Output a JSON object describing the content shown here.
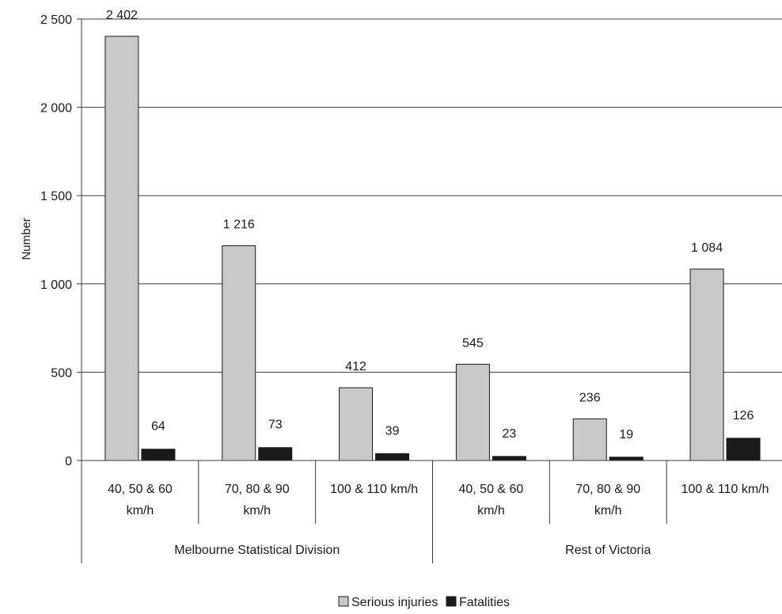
{
  "chart_data": {
    "type": "bar",
    "title": "",
    "xlabel": "",
    "ylabel": "Number",
    "ylim": [
      0,
      2500
    ],
    "yticks": [
      0,
      500,
      1000,
      1500,
      2000,
      2500
    ],
    "ytick_labels": [
      "0",
      "500",
      "1 000",
      "1 500",
      "2 000",
      "2 500"
    ],
    "grid": "horizontal",
    "legend_position": "bottom-center",
    "categories": [
      {
        "lines": [
          "40, 50 & 60",
          "km/h"
        ]
      },
      {
        "lines": [
          "70, 80 & 90",
          "km/h"
        ]
      },
      {
        "lines": [
          "100 & 110 km/h"
        ]
      },
      {
        "lines": [
          "40, 50 & 60",
          "km/h"
        ]
      },
      {
        "lines": [
          "70, 80 & 90",
          "km/h"
        ]
      },
      {
        "lines": [
          "100 & 110 km/h"
        ]
      }
    ],
    "groups": [
      {
        "label": "Melbourne Statistical Division",
        "span": [
          0,
          2
        ]
      },
      {
        "label": "Rest of Victoria",
        "span": [
          3,
          5
        ]
      }
    ],
    "series": [
      {
        "name": "Serious injuries",
        "color": "#c8c8c8",
        "values": [
          2402,
          1216,
          412,
          545,
          236,
          1084
        ],
        "labels": [
          "2 402",
          "1 216",
          "412",
          "545",
          "236",
          "1 084"
        ]
      },
      {
        "name": "Fatalities",
        "color": "#1a1a1a",
        "values": [
          64,
          73,
          39,
          23,
          19,
          126
        ],
        "labels": [
          "64",
          "73",
          "39",
          "23",
          "19",
          "126"
        ]
      }
    ]
  }
}
